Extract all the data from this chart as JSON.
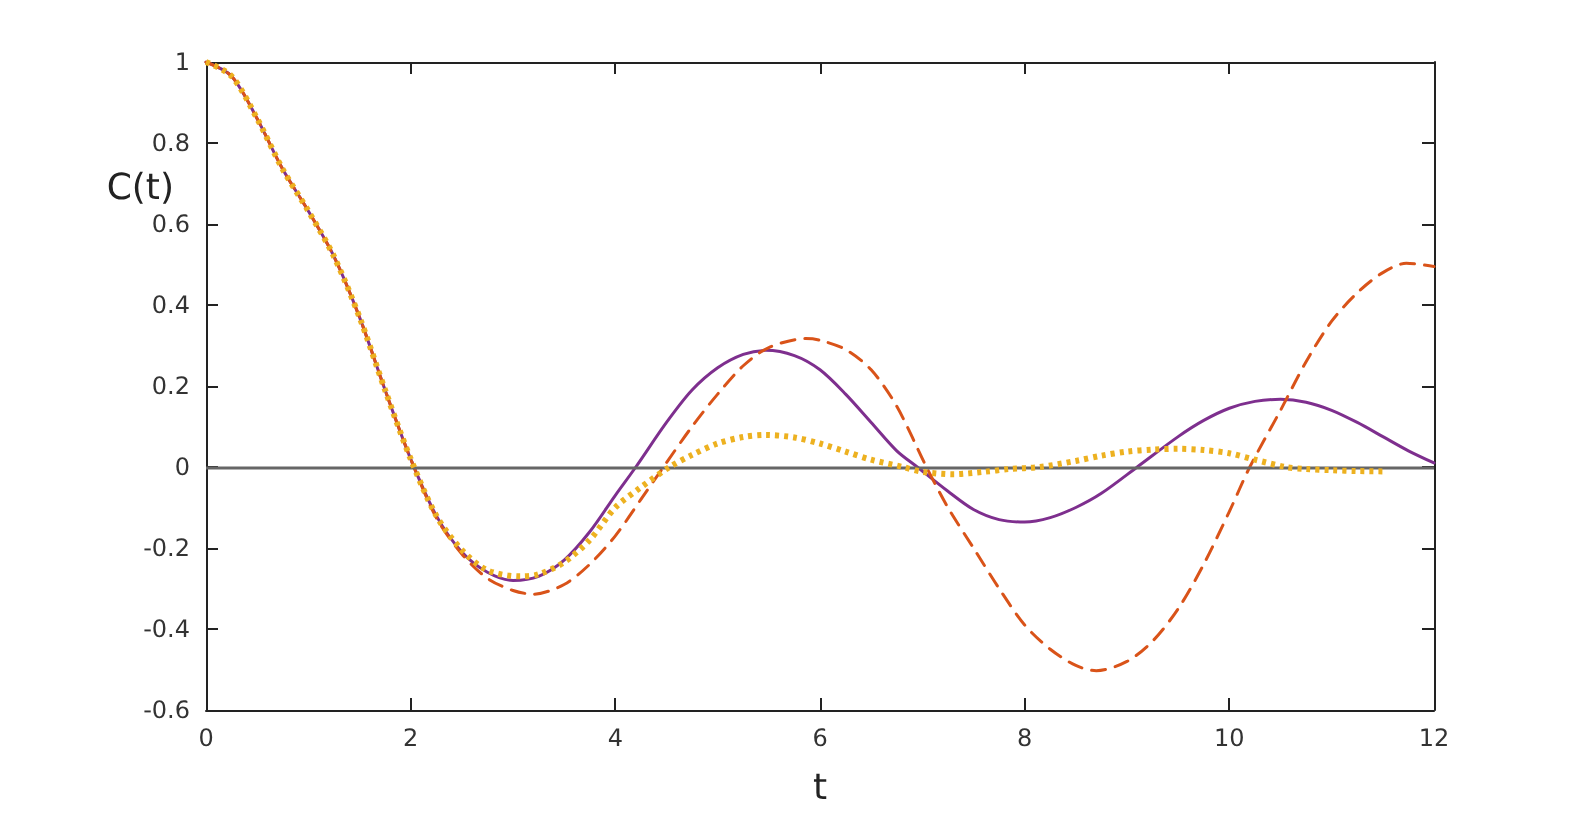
{
  "chart_data": {
    "type": "line",
    "xlabel": "t",
    "ylabel": "C(t)",
    "xlim": [
      0,
      12
    ],
    "xticks": [
      0,
      2,
      4,
      6,
      8,
      10,
      12
    ],
    "ylim": [
      -0.6,
      1
    ],
    "yticks": [
      -0.6,
      -0.4,
      -0.2,
      0,
      0.2,
      0.4,
      0.6,
      0.8,
      1
    ],
    "grid": false,
    "marker": "none",
    "ref_lines": [
      {
        "axis": "y",
        "value": 0,
        "color": "#666666"
      }
    ],
    "series": [
      {
        "color": "#7e2f8e",
        "line_style": "solid",
        "x": [
          0,
          0.25,
          0.5,
          0.75,
          1,
          1.25,
          1.5,
          1.75,
          2,
          2.25,
          2.5,
          2.75,
          3,
          3.25,
          3.5,
          3.75,
          4,
          4.2,
          4.5,
          4.75,
          5,
          5.25,
          5.47,
          5.75,
          6,
          6.25,
          6.5,
          6.75,
          6.95,
          7.25,
          7.5,
          7.75,
          8,
          8.25,
          8.5,
          8.75,
          9.1,
          9.5,
          9.75,
          10,
          10.25,
          10.5,
          10.75,
          11,
          11.25,
          11.5,
          11.75,
          12
        ],
        "values": [
          1,
          0.965,
          0.86,
          0.735,
          0.632,
          0.52,
          0.37,
          0.19,
          0.02,
          -0.12,
          -0.21,
          -0.26,
          -0.28,
          -0.27,
          -0.23,
          -0.16,
          -0.07,
          0,
          0.11,
          0.19,
          0.245,
          0.278,
          0.288,
          0.275,
          0.24,
          0.18,
          0.11,
          0.04,
          0,
          -0.06,
          -0.105,
          -0.13,
          -0.136,
          -0.125,
          -0.1,
          -0.065,
          0,
          0.075,
          0.115,
          0.145,
          0.162,
          0.167,
          0.16,
          0.14,
          0.11,
          0.075,
          0.04,
          0.01
        ]
      },
      {
        "color": "#d95319",
        "line_style": "dashed",
        "x": [
          0,
          0.25,
          0.5,
          0.75,
          1,
          1.25,
          1.5,
          1.75,
          2,
          2.25,
          2.5,
          2.75,
          3,
          3.2,
          3.5,
          3.75,
          4,
          4.25,
          4.47,
          4.75,
          5,
          5.25,
          5.5,
          5.86,
          6,
          6.25,
          6.5,
          6.75,
          7.04,
          7.25,
          7.5,
          7.75,
          8,
          8.25,
          8.5,
          8.7,
          9,
          9.25,
          9.5,
          9.75,
          10,
          10.2,
          10.5,
          10.75,
          11,
          11.25,
          11.5,
          11.73,
          12
        ],
        "values": [
          1,
          0.965,
          0.86,
          0.735,
          0.632,
          0.52,
          0.37,
          0.19,
          0.02,
          -0.125,
          -0.215,
          -0.275,
          -0.305,
          -0.314,
          -0.29,
          -0.24,
          -0.17,
          -0.08,
          0,
          0.1,
          0.18,
          0.25,
          0.295,
          0.317,
          0.313,
          0.29,
          0.24,
          0.15,
          0,
          -0.1,
          -0.2,
          -0.3,
          -0.39,
          -0.45,
          -0.49,
          -0.503,
          -0.48,
          -0.43,
          -0.35,
          -0.24,
          -0.11,
          0,
          0.14,
          0.26,
          0.36,
          0.43,
          0.48,
          0.503,
          0.495
        ]
      },
      {
        "color": "#edb120",
        "line_style": "dotted",
        "x": [
          0,
          0.25,
          0.5,
          0.75,
          1,
          1.25,
          1.5,
          1.75,
          2,
          2.25,
          2.5,
          2.75,
          3.07,
          3.25,
          3.5,
          3.75,
          4,
          4.25,
          4.53,
          4.75,
          5,
          5.25,
          5.47,
          5.75,
          6,
          6.25,
          6.5,
          6.81,
          7,
          7.3,
          7.6,
          7.85,
          8.15,
          8.5,
          8.75,
          9,
          9.25,
          9.5,
          9.75,
          10,
          10.25,
          10.55,
          10.75,
          11,
          11.25,
          11.53
        ],
        "values": [
          1,
          0.965,
          0.86,
          0.735,
          0.632,
          0.52,
          0.37,
          0.19,
          0.02,
          -0.12,
          -0.205,
          -0.255,
          -0.27,
          -0.265,
          -0.235,
          -0.18,
          -0.1,
          -0.05,
          0,
          0.03,
          0.058,
          0.074,
          0.079,
          0.073,
          0.058,
          0.038,
          0.018,
          0,
          -0.012,
          -0.018,
          -0.012,
          -0.005,
          0,
          0.015,
          0.028,
          0.038,
          0.043,
          0.045,
          0.042,
          0.034,
          0.018,
          0,
          -0.005,
          -0.008,
          -0.01,
          -0.011
        ]
      }
    ]
  }
}
